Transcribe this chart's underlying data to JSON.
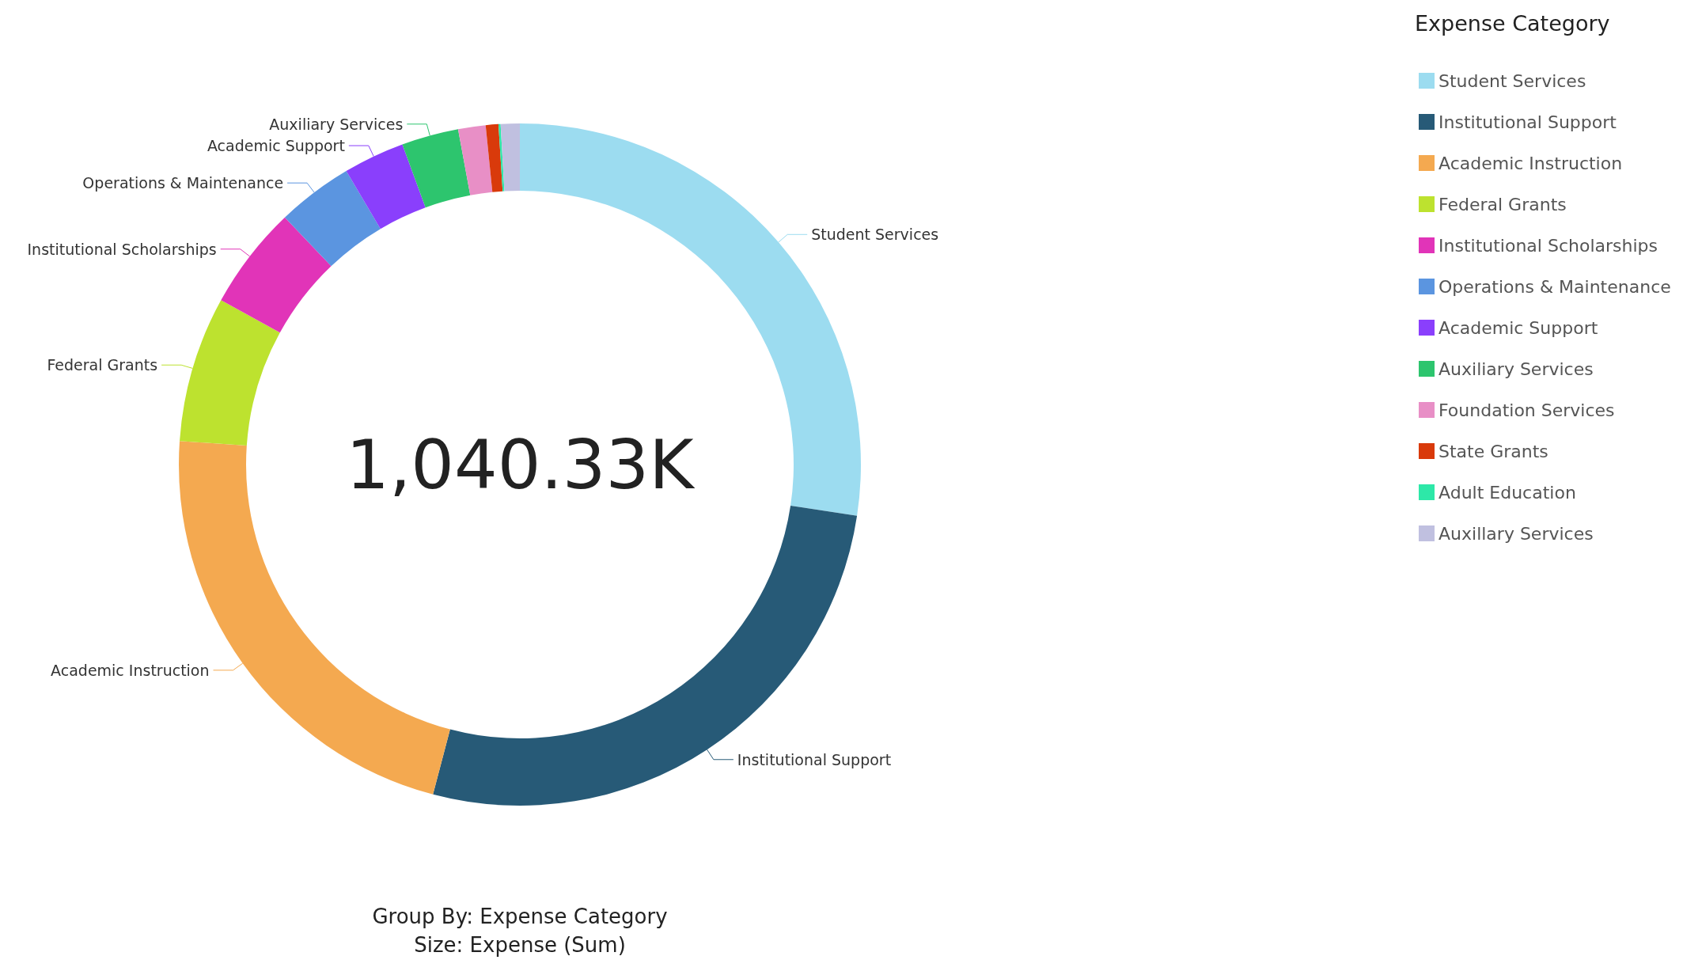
{
  "chart_data": {
    "type": "donut",
    "legend_title": "Expense Category",
    "categories": [
      "Student Services",
      "Institutional Support",
      "Academic Instruction",
      "Federal Grants",
      "Institutional Scholarships",
      "Operations & Maintenance",
      "Academic Support",
      "Auxiliary Services",
      "Foundation Services",
      "State Grants",
      "Adult Education",
      "Auxillary Services"
    ],
    "values": [
      27.4,
      26.7,
      22.0,
      6.9,
      4.9,
      3.6,
      2.9,
      2.7,
      1.3,
      0.6,
      0.1,
      0.9
    ],
    "colors": [
      "#9cdcf0",
      "#275a77",
      "#f4a950",
      "#bde22f",
      "#e134b8",
      "#5b95e0",
      "#8a3ffc",
      "#2dc56e",
      "#e88fc6",
      "#d93a0b",
      "#2de8a8",
      "#c0c0e0"
    ],
    "legend": "top right",
    "annotations": [
      "1,040.33K",
      "Group By: Expense Category",
      "Size: Expense (Sum)"
    ]
  }
}
